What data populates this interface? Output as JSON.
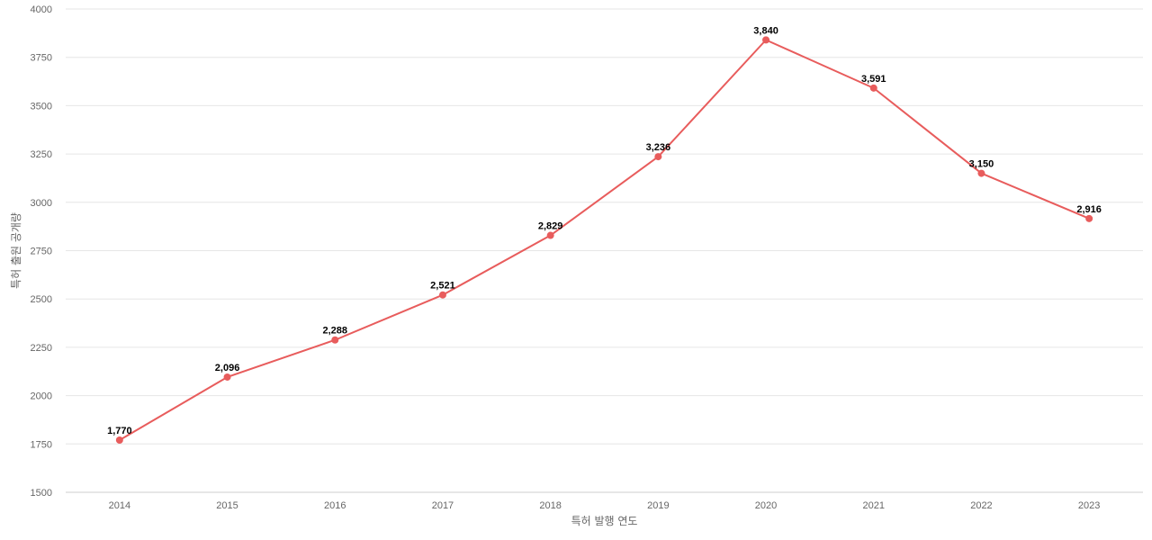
{
  "chart_data": {
    "type": "line",
    "title": "",
    "xlabel": "특허 발행 연도",
    "ylabel": "특허 출원 공개량",
    "x": [
      "2014",
      "2015",
      "2016",
      "2017",
      "2018",
      "2019",
      "2020",
      "2021",
      "2022",
      "2023"
    ],
    "series": [
      {
        "values": [
          1770,
          2096,
          2288,
          2521,
          2829,
          3236,
          3840,
          3591,
          3150,
          2916
        ]
      }
    ],
    "data_labels": [
      "1,770",
      "2,096",
      "2,288",
      "2,521",
      "2,829",
      "3,236",
      "3,840",
      "3,591",
      "3,150",
      "2,916"
    ],
    "ylim": [
      1500,
      4000
    ],
    "yticks": [
      "1500",
      "1750",
      "2000",
      "2250",
      "2500",
      "2750",
      "3000",
      "3250",
      "3500",
      "3750",
      "4000"
    ],
    "grid": true,
    "legend": "none",
    "colors": {
      "line": "#e85c5c",
      "grid": "#e6e6e6",
      "text": "#666666"
    }
  }
}
